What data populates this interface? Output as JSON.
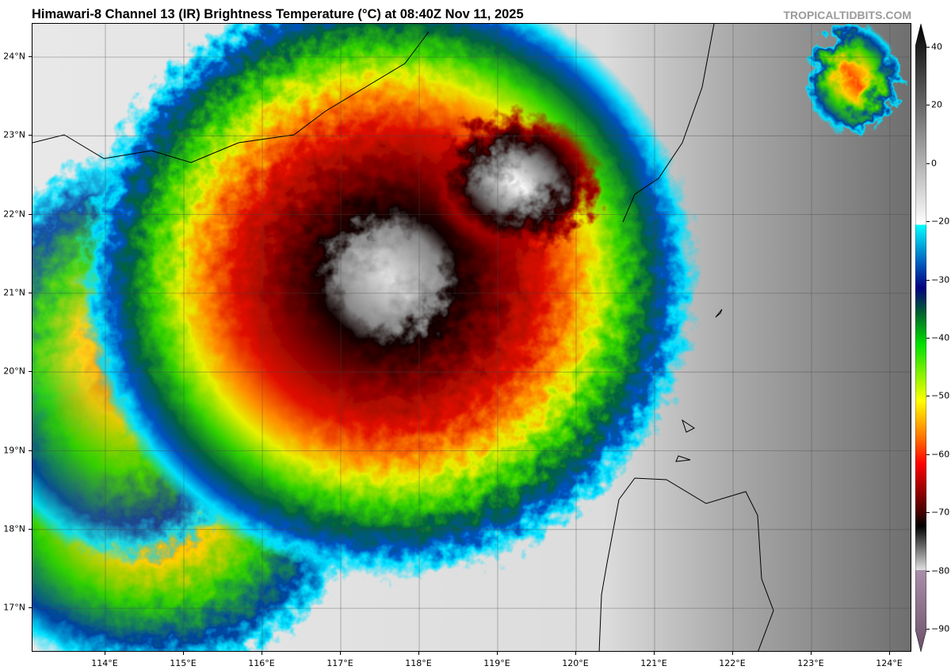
{
  "header": {
    "title": "Himawari-8 Channel 13 (IR) Brightness Temperature (°C) at 08:40Z Nov 11, 2025",
    "credit": "TROPICALTIDBITS.COM"
  },
  "map": {
    "lon_labels": [
      "114°E",
      "115°E",
      "116°E",
      "117°E",
      "118°E",
      "119°E",
      "120°E",
      "121°E",
      "122°E",
      "123°E",
      "124°E"
    ],
    "lat_labels": [
      "24°N",
      "23°N",
      "22°N",
      "21°N",
      "20°N",
      "19°N",
      "18°N",
      "17°N"
    ],
    "lon_range": [
      113.1,
      124.3
    ],
    "lat_range": [
      16.45,
      24.45
    ]
  },
  "colorbar": {
    "ticks": [
      "40",
      "20",
      "0",
      "−20",
      "−30",
      "−40",
      "−50",
      "−60",
      "−70",
      "−80",
      "−90"
    ],
    "colors": {
      "warm": "#000000",
      "neutral": "#ffffff",
      "cyan": "#00ffff",
      "navy": "#00007f",
      "green": "#00c800",
      "yellow": "#ffff00",
      "orange": "#ff8c00",
      "red": "#ff0000",
      "darkred": "#5a0000",
      "mauve": "#a08aa0"
    }
  }
}
